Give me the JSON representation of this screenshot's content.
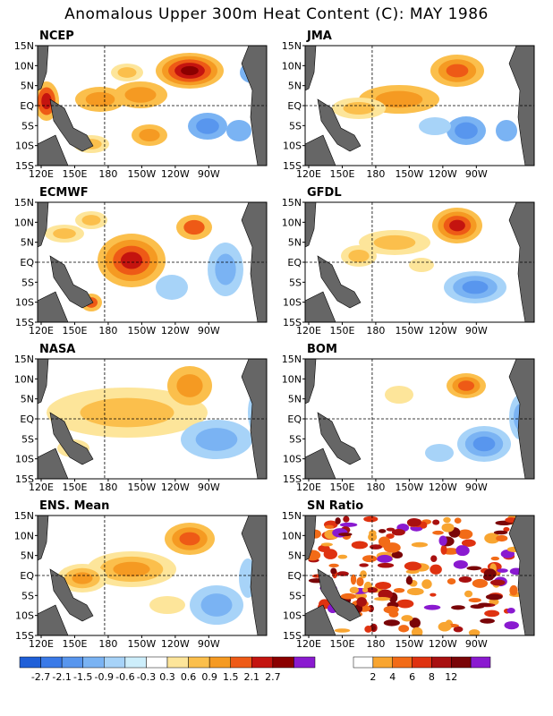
{
  "title": "Anomalous Upper 300m Heat Content (C): MAY 1986",
  "axes": {
    "x_ticks": [
      "120E",
      "150E",
      "180",
      "150W",
      "120W",
      "90W"
    ],
    "y_ticks": [
      "15N",
      "10N",
      "5N",
      "EQ",
      "5S",
      "10S",
      "15S"
    ]
  },
  "panels": [
    {
      "id": "ncep",
      "label": "NCEP"
    },
    {
      "id": "jma",
      "label": "JMA"
    },
    {
      "id": "ecmwf",
      "label": "ECMWF"
    },
    {
      "id": "gfdl",
      "label": "GFDL"
    },
    {
      "id": "nasa",
      "label": "NASA"
    },
    {
      "id": "bom",
      "label": "BOM"
    },
    {
      "id": "ens",
      "label": "ENS. Mean"
    },
    {
      "id": "sn",
      "label": "SN Ratio"
    }
  ],
  "anomaly_colorbar": {
    "colors": [
      "#1f5fd8",
      "#3a7ae8",
      "#5896ee",
      "#7ab3f3",
      "#a7d3f8",
      "#cdeefb",
      "#ffffff",
      "#fde59a",
      "#fbbf4c",
      "#f59a22",
      "#ee5a16",
      "#c4140f",
      "#8b0000",
      "#8a1ad0"
    ],
    "labels": [
      "-2.7",
      "-2.1",
      "-1.5",
      "-0.9",
      "-0.6",
      "-0.3",
      "0.3",
      "0.6",
      "0.9",
      "1.5",
      "2.1",
      "2.7"
    ]
  },
  "sn_colorbar": {
    "colors": [
      "#ffffff",
      "#f8a531",
      "#f26b17",
      "#df3210",
      "#a81010",
      "#7a0508",
      "#8a1ad0"
    ],
    "labels": [
      "2",
      "4",
      "6",
      "8",
      "12"
    ]
  }
}
